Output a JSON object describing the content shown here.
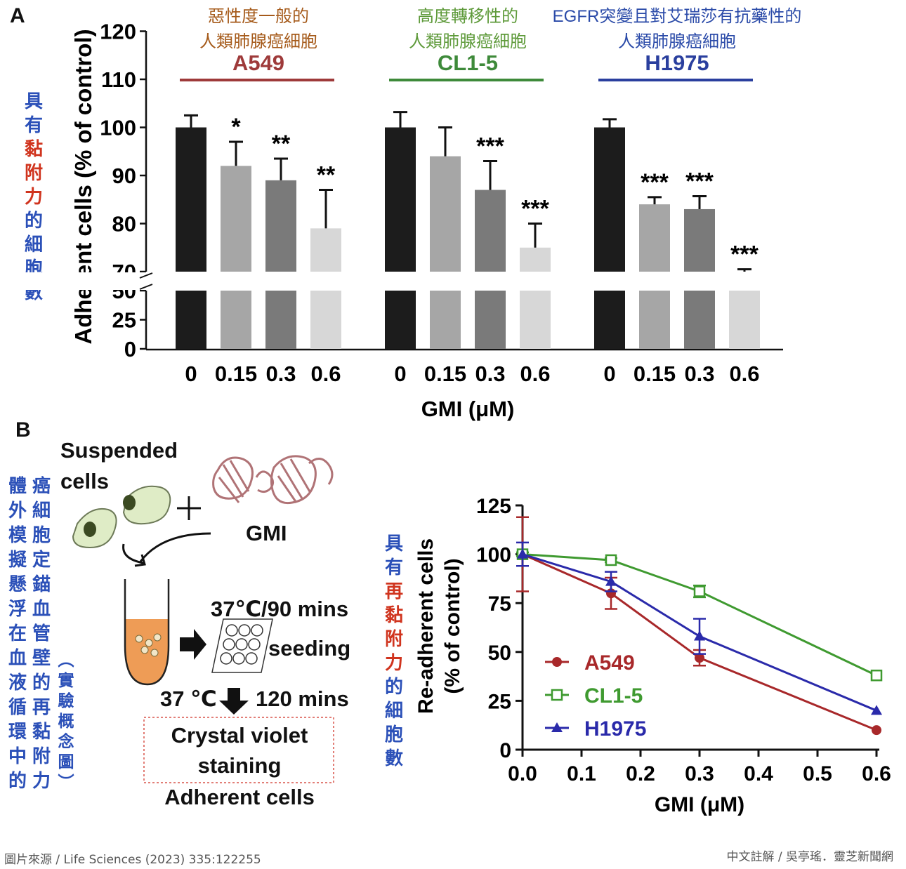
{
  "panel_a": {
    "letter": "A",
    "side_label_chars": [
      {
        "c": "具",
        "color": "#2b50b8"
      },
      {
        "c": "有",
        "color": "#2b50b8"
      },
      {
        "c": "黏",
        "color": "#d0341e"
      },
      {
        "c": "附",
        "color": "#d0341e"
      },
      {
        "c": "力",
        "color": "#d0341e"
      },
      {
        "c": "的",
        "color": "#2b50b8"
      },
      {
        "c": "細",
        "color": "#2b50b8"
      },
      {
        "c": "胞",
        "color": "#2b50b8"
      },
      {
        "c": "數",
        "color": "#2b50b8"
      }
    ],
    "groups": [
      {
        "note1": "惡性度一般的",
        "note2": "人類肺腺癌細胞",
        "name": "A549",
        "color": "#9e3a3a",
        "noteColor": "#a55a1a"
      },
      {
        "note1": "高度轉移性的",
        "note2": "人類肺腺癌細胞",
        "name": "CL1-5",
        "color": "#3e8a3a",
        "noteColor": "#5e9a3a"
      },
      {
        "note1": "EGFR突變且對艾瑞莎有抗藥性的",
        "note2": "人類肺腺癌細胞",
        "name": "H1975",
        "color": "#2a3f9e",
        "noteColor": "#2a4aa8"
      }
    ]
  },
  "chart_data": [
    {
      "type": "bar",
      "ylabel": "Adherent cells (% of control)",
      "xlabel": "GMI (μM)",
      "y_ticks_upper": [
        "70",
        "80",
        "90",
        "100",
        "110",
        "120"
      ],
      "y_ticks_lower": [
        "0",
        "25",
        "50"
      ],
      "y_axis_break": [
        50,
        70
      ],
      "categories": [
        "0",
        "0.15",
        "0.3",
        "0.6"
      ],
      "bar_colors": [
        "#1c1c1c",
        "#a6a6a6",
        "#7a7a7a",
        "#d7d7d7"
      ],
      "series": [
        {
          "name": "A549",
          "values": [
            100,
            92,
            89,
            79
          ],
          "errors": [
            2.5,
            5,
            4.5,
            8
          ],
          "signif": [
            "",
            "*",
            "**",
            "**"
          ]
        },
        {
          "name": "CL1-5",
          "values": [
            100,
            94,
            87,
            75
          ],
          "errors": [
            3.2,
            6,
            6,
            5
          ],
          "signif": [
            "",
            "",
            "***",
            "***"
          ]
        },
        {
          "name": "H1975",
          "values": [
            100,
            84,
            83,
            69
          ],
          "errors": [
            1.7,
            1.5,
            2.7,
            1.5
          ],
          "signif": [
            "",
            "***",
            "***",
            "***"
          ]
        }
      ]
    },
    {
      "type": "line",
      "ylabel_line1": "Re-adherent cells",
      "ylabel_line2": "(% of control)",
      "xlabel": "GMI (μM)",
      "xlim": [
        0,
        0.6
      ],
      "ylim": [
        0,
        125
      ],
      "x_ticks": [
        "0.0",
        "0.1",
        "0.2",
        "0.3",
        "0.4",
        "0.5",
        "0.6"
      ],
      "y_ticks": [
        "0",
        "25",
        "50",
        "75",
        "100",
        "125"
      ],
      "x": [
        0,
        0.15,
        0.3,
        0.6
      ],
      "series": [
        {
          "name": "A549",
          "color": "#a8282a",
          "marker": "circle",
          "values": [
            100,
            80,
            47,
            10
          ],
          "errors": [
            19,
            8,
            4,
            0
          ]
        },
        {
          "name": "CL1-5",
          "color": "#3f9a30",
          "marker": "open-square",
          "values": [
            100,
            97,
            81,
            38
          ],
          "errors": [
            1,
            1,
            3,
            0
          ]
        },
        {
          "name": "H1975",
          "color": "#2a2aaa",
          "marker": "triangle",
          "values": [
            100,
            86,
            58,
            20
          ],
          "errors": [
            6,
            5,
            9,
            0
          ]
        }
      ],
      "legend_position": "bottom-left"
    }
  ],
  "panel_b": {
    "letter": "B",
    "suspended_1": "Suspended",
    "suspended_2": "cells",
    "plus": "+",
    "gmi": "GMI",
    "cond1": "37℃/90 mins",
    "seeding": "seeding",
    "cond2_a": "37 ℃",
    "cond2_b": "120 mins",
    "stain1": "Crystal violet",
    "stain2": "staining",
    "adherent": "Adherent cells",
    "col_left_chars": [
      "體",
      "外",
      "模",
      "擬",
      "懸",
      "浮",
      "在",
      "血",
      "液",
      "循",
      "環",
      "中",
      "的"
    ],
    "col_mid_chars": [
      "癌",
      "細",
      "胞",
      "定",
      "錨",
      "血",
      "管",
      "壁",
      "的",
      "再",
      "黏",
      "附",
      "力"
    ],
    "col_paren_chars": [
      "︵",
      "實",
      "驗",
      "概",
      "念",
      "圖",
      "︶"
    ],
    "re_label_chars": [
      {
        "c": "具",
        "color": "#2b50b8"
      },
      {
        "c": "有",
        "color": "#2b50b8"
      },
      {
        "c": "再",
        "color": "#d0341e"
      },
      {
        "c": "黏",
        "color": "#d0341e"
      },
      {
        "c": "附",
        "color": "#d0341e"
      },
      {
        "c": "力",
        "color": "#d0341e"
      },
      {
        "c": "的",
        "color": "#2b50b8"
      },
      {
        "c": "細",
        "color": "#2b50b8"
      },
      {
        "c": "胞",
        "color": "#2b50b8"
      },
      {
        "c": "數",
        "color": "#2b50b8"
      }
    ]
  },
  "footer": {
    "left": "圖片來源 / Life Sciences (2023) 335:122255",
    "right": "中文註解 / 吳亭瑤．靈芝新聞網"
  }
}
